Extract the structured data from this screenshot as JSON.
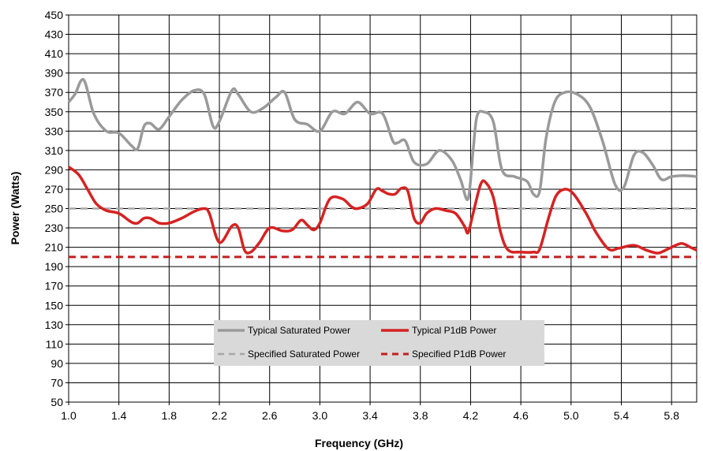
{
  "chart_data": {
    "type": "line",
    "title": "",
    "xlabel": "Frequency (GHz)",
    "ylabel": "Power (Watts)",
    "xlim": [
      1.0,
      6.0
    ],
    "ylim": [
      50,
      450
    ],
    "x_ticks": [
      "1.0",
      "1.4",
      "1.8",
      "2.2",
      "2.6",
      "3.0",
      "3.4",
      "3.8",
      "4.2",
      "4.6",
      "5.0",
      "5.4",
      "5.8"
    ],
    "y_ticks": [
      "50",
      "70",
      "90",
      "110",
      "130",
      "150",
      "170",
      "190",
      "210",
      "230",
      "250",
      "270",
      "290",
      "310",
      "330",
      "350",
      "370",
      "390",
      "410",
      "430",
      "450"
    ],
    "grid": true,
    "legend_position": "center-bottom",
    "series": [
      {
        "name": "Typical Saturated Power",
        "color": "#9a9a9a",
        "style": "solid",
        "points": [
          [
            1.0,
            360
          ],
          [
            1.05,
            368
          ],
          [
            1.12,
            383
          ],
          [
            1.2,
            348
          ],
          [
            1.3,
            330
          ],
          [
            1.4,
            328
          ],
          [
            1.5,
            315
          ],
          [
            1.55,
            312
          ],
          [
            1.6,
            335
          ],
          [
            1.65,
            338
          ],
          [
            1.72,
            332
          ],
          [
            1.8,
            345
          ],
          [
            1.9,
            362
          ],
          [
            2.0,
            372
          ],
          [
            2.08,
            368
          ],
          [
            2.15,
            335
          ],
          [
            2.2,
            340
          ],
          [
            2.3,
            372
          ],
          [
            2.35,
            368
          ],
          [
            2.45,
            350
          ],
          [
            2.55,
            354
          ],
          [
            2.65,
            365
          ],
          [
            2.72,
            370
          ],
          [
            2.8,
            342
          ],
          [
            2.9,
            337
          ],
          [
            3.0,
            330
          ],
          [
            3.1,
            350
          ],
          [
            3.2,
            348
          ],
          [
            3.3,
            360
          ],
          [
            3.4,
            348
          ],
          [
            3.5,
            348
          ],
          [
            3.58,
            320
          ],
          [
            3.62,
            318
          ],
          [
            3.68,
            320
          ],
          [
            3.75,
            298
          ],
          [
            3.85,
            296
          ],
          [
            3.95,
            310
          ],
          [
            4.05,
            300
          ],
          [
            4.12,
            280
          ],
          [
            4.18,
            260
          ],
          [
            4.22,
            310
          ],
          [
            4.25,
            345
          ],
          [
            4.3,
            350
          ],
          [
            4.38,
            340
          ],
          [
            4.45,
            290
          ],
          [
            4.55,
            283
          ],
          [
            4.65,
            278
          ],
          [
            4.7,
            265
          ],
          [
            4.75,
            268
          ],
          [
            4.8,
            322
          ],
          [
            4.87,
            360
          ],
          [
            4.95,
            370
          ],
          [
            5.05,
            368
          ],
          [
            5.15,
            355
          ],
          [
            5.25,
            320
          ],
          [
            5.35,
            275
          ],
          [
            5.42,
            272
          ],
          [
            5.5,
            305
          ],
          [
            5.57,
            308
          ],
          [
            5.65,
            295
          ],
          [
            5.72,
            280
          ],
          [
            5.8,
            283
          ],
          [
            5.9,
            284
          ],
          [
            6.0,
            283
          ]
        ]
      },
      {
        "name": "Typical P1dB Power",
        "color": "#d62222",
        "style": "solid",
        "points": [
          [
            1.0,
            293
          ],
          [
            1.08,
            285
          ],
          [
            1.15,
            270
          ],
          [
            1.22,
            255
          ],
          [
            1.3,
            248
          ],
          [
            1.4,
            245
          ],
          [
            1.5,
            236
          ],
          [
            1.55,
            235
          ],
          [
            1.6,
            240
          ],
          [
            1.65,
            240
          ],
          [
            1.72,
            235
          ],
          [
            1.8,
            235
          ],
          [
            1.9,
            240
          ],
          [
            2.0,
            247
          ],
          [
            2.08,
            250
          ],
          [
            2.12,
            245
          ],
          [
            2.2,
            215
          ],
          [
            2.3,
            232
          ],
          [
            2.35,
            230
          ],
          [
            2.4,
            207
          ],
          [
            2.45,
            205
          ],
          [
            2.52,
            215
          ],
          [
            2.6,
            230
          ],
          [
            2.7,
            227
          ],
          [
            2.78,
            228
          ],
          [
            2.85,
            238
          ],
          [
            2.9,
            233
          ],
          [
            2.95,
            228
          ],
          [
            3.0,
            235
          ],
          [
            3.08,
            260
          ],
          [
            3.18,
            260
          ],
          [
            3.25,
            252
          ],
          [
            3.3,
            250
          ],
          [
            3.38,
            255
          ],
          [
            3.45,
            270
          ],
          [
            3.5,
            268
          ],
          [
            3.55,
            265
          ],
          [
            3.6,
            265
          ],
          [
            3.65,
            271
          ],
          [
            3.7,
            268
          ],
          [
            3.75,
            240
          ],
          [
            3.8,
            235
          ],
          [
            3.85,
            245
          ],
          [
            3.92,
            250
          ],
          [
            4.0,
            248
          ],
          [
            4.08,
            245
          ],
          [
            4.15,
            232
          ],
          [
            4.18,
            225
          ],
          [
            4.22,
            245
          ],
          [
            4.28,
            275
          ],
          [
            4.32,
            277
          ],
          [
            4.38,
            262
          ],
          [
            4.44,
            225
          ],
          [
            4.5,
            207
          ],
          [
            4.6,
            205
          ],
          [
            4.7,
            205
          ],
          [
            4.75,
            208
          ],
          [
            4.82,
            240
          ],
          [
            4.88,
            263
          ],
          [
            4.95,
            270
          ],
          [
            5.02,
            265
          ],
          [
            5.12,
            245
          ],
          [
            5.2,
            225
          ],
          [
            5.3,
            208
          ],
          [
            5.38,
            209
          ],
          [
            5.5,
            212
          ],
          [
            5.6,
            207
          ],
          [
            5.68,
            204
          ],
          [
            5.72,
            205
          ],
          [
            5.8,
            210
          ],
          [
            5.88,
            214
          ],
          [
            5.95,
            210
          ],
          [
            6.0,
            207
          ]
        ]
      },
      {
        "name": "Specified Saturated Power",
        "color": "#a6a6a6",
        "style": "dashed",
        "points": [
          [
            1.0,
            250
          ],
          [
            6.0,
            250
          ]
        ]
      },
      {
        "name": "Specified P1dB Power",
        "color": "#c41e1e",
        "style": "dashed",
        "points": [
          [
            1.0,
            200
          ],
          [
            6.0,
            200
          ]
        ]
      }
    ]
  }
}
